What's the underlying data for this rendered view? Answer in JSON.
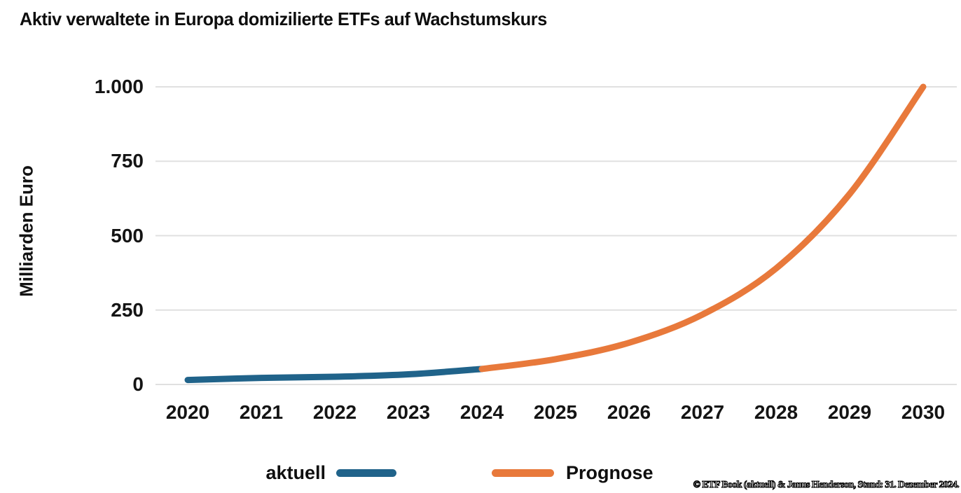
{
  "title": "Aktiv verwaltete in Europa domizilierte ETFs auf Wachstumskurs",
  "source_note": "© ETF Book (aktuell) & Janus Henderson, Stand: 31. Dezember 2024.",
  "colors": {
    "aktuell": "#20638A",
    "prognose": "#E8793B",
    "gridline": "#E0E0E0",
    "text": "#111111"
  },
  "legend": {
    "items": [
      {
        "label": "aktuell"
      },
      {
        "label": "Prognose"
      }
    ]
  },
  "chart_data": {
    "type": "line",
    "title": "Aktiv verwaltete in Europa domizilierte ETFs auf Wachstumskurs",
    "xlabel": "",
    "ylabel": "Milliarden Euro",
    "xlim": [
      2020,
      2030
    ],
    "ylim": [
      0,
      1000
    ],
    "x_ticks": [
      2020,
      2021,
      2022,
      2023,
      2024,
      2025,
      2026,
      2027,
      2028,
      2029,
      2030
    ],
    "y_ticks": [
      0,
      250,
      500,
      750,
      1000
    ],
    "y_tick_labels": [
      "0",
      "250",
      "500",
      "750",
      "1.000"
    ],
    "grid": "horizontal",
    "legend_position": "bottom",
    "series": [
      {
        "name": "aktuell",
        "color": "#20638A",
        "x": [
          2020,
          2021,
          2022,
          2023,
          2024
        ],
        "values": [
          15,
          22,
          26,
          34,
          52
        ]
      },
      {
        "name": "Prognose",
        "color": "#E8793B",
        "x": [
          2024,
          2025,
          2026,
          2027,
          2028,
          2029,
          2030
        ],
        "values": [
          52,
          85,
          140,
          235,
          390,
          640,
          1000
        ]
      }
    ]
  }
}
